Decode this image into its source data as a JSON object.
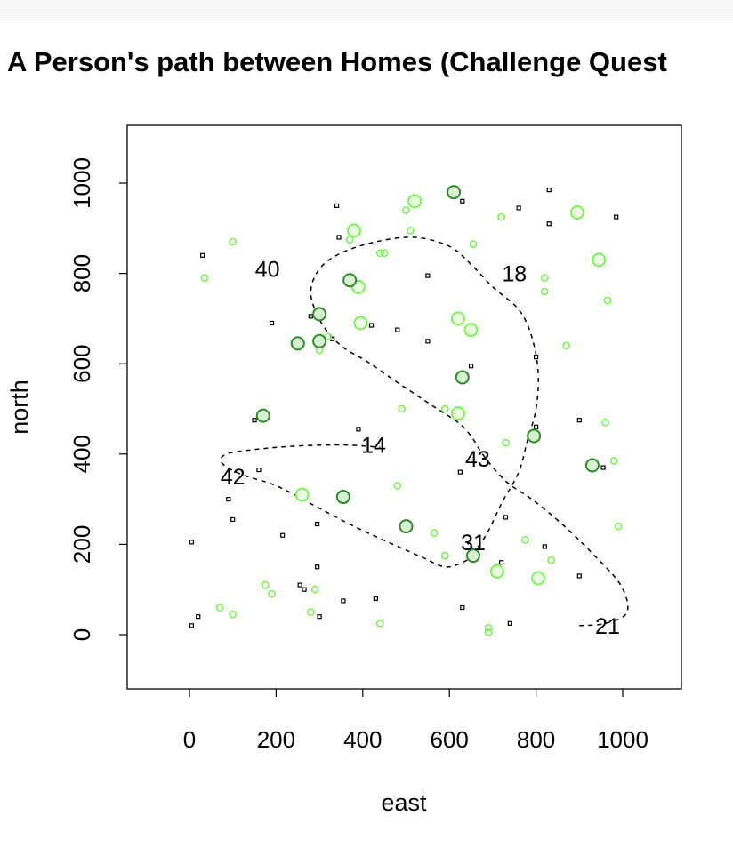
{
  "chart_data": {
    "type": "scatter",
    "title": "A Person's path between Homes (Challenge Quest",
    "xlabel": "east",
    "ylabel": "north",
    "xlim": [
      -140,
      1130
    ],
    "ylim": [
      -120,
      1120
    ],
    "xticks": [
      0,
      200,
      400,
      600,
      800,
      1000
    ],
    "xtick_labels": [
      "0",
      "200",
      "400",
      "600",
      "800",
      "1000"
    ],
    "yticks": [
      0,
      200,
      400,
      600,
      800,
      1000
    ],
    "ytick_labels": [
      "0",
      "200",
      "400",
      "600",
      "800",
      "1000"
    ],
    "grid": false,
    "colors": {
      "light_green": "#7ef05a",
      "dark_green": "#2f8a2a",
      "black": "#000000"
    },
    "series": [
      {
        "marker": "small-black-square",
        "color": "#000000",
        "points": [
          [
            5,
            20
          ],
          [
            20,
            40
          ],
          [
            5,
            205
          ],
          [
            30,
            840
          ],
          [
            90,
            300
          ],
          [
            100,
            255
          ],
          [
            150,
            475
          ],
          [
            160,
            365
          ],
          [
            190,
            690
          ],
          [
            215,
            220
          ],
          [
            255,
            110
          ],
          [
            265,
            100
          ],
          [
            280,
            705
          ],
          [
            295,
            245
          ],
          [
            295,
            150
          ],
          [
            300,
            40
          ],
          [
            330,
            655
          ],
          [
            345,
            880
          ],
          [
            340,
            950
          ],
          [
            355,
            75
          ],
          [
            390,
            455
          ],
          [
            420,
            685
          ],
          [
            430,
            80
          ],
          [
            480,
            675
          ],
          [
            550,
            795
          ],
          [
            550,
            650
          ],
          [
            625,
            360
          ],
          [
            630,
            960
          ],
          [
            630,
            60
          ],
          [
            650,
            595
          ],
          [
            720,
            160
          ],
          [
            730,
            260
          ],
          [
            740,
            25
          ],
          [
            760,
            945
          ],
          [
            800,
            460
          ],
          [
            800,
            615
          ],
          [
            820,
            195
          ],
          [
            830,
            985
          ],
          [
            830,
            910
          ],
          [
            900,
            130
          ],
          [
            900,
            475
          ],
          [
            955,
            370
          ],
          [
            985,
            925
          ]
        ]
      },
      {
        "marker": "small-green-circle",
        "color": "#7ef05a",
        "points": [
          [
            35,
            790
          ],
          [
            70,
            60
          ],
          [
            100,
            45
          ],
          [
            100,
            870
          ],
          [
            175,
            110
          ],
          [
            190,
            90
          ],
          [
            280,
            50
          ],
          [
            290,
            100
          ],
          [
            300,
            630
          ],
          [
            320,
            660
          ],
          [
            370,
            875
          ],
          [
            440,
            25
          ],
          [
            440,
            845
          ],
          [
            450,
            845
          ],
          [
            480,
            330
          ],
          [
            490,
            500
          ],
          [
            500,
            940
          ],
          [
            510,
            895
          ],
          [
            565,
            225
          ],
          [
            590,
            500
          ],
          [
            590,
            175
          ],
          [
            655,
            865
          ],
          [
            730,
            425
          ],
          [
            720,
            925
          ],
          [
            775,
            210
          ],
          [
            820,
            790
          ],
          [
            820,
            760
          ],
          [
            835,
            165
          ],
          [
            870,
            640
          ],
          [
            960,
            470
          ],
          [
            965,
            740
          ],
          [
            980,
            385
          ],
          [
            990,
            240
          ],
          [
            690,
            15
          ],
          [
            690,
            5
          ],
          [
            710,
            150
          ]
        ]
      },
      {
        "marker": "large-light-green-circle",
        "color": "#7ef05a",
        "points": [
          [
            260,
            310
          ],
          [
            380,
            895
          ],
          [
            390,
            770
          ],
          [
            395,
            690
          ],
          [
            520,
            960
          ],
          [
            620,
            700
          ],
          [
            620,
            490
          ],
          [
            650,
            675
          ],
          [
            710,
            140
          ],
          [
            805,
            125
          ],
          [
            895,
            935
          ],
          [
            945,
            830
          ]
        ]
      },
      {
        "marker": "large-dark-green-circle",
        "color": "#2f8a2a",
        "points": [
          [
            170,
            485
          ],
          [
            250,
            645
          ],
          [
            300,
            710
          ],
          [
            300,
            650
          ],
          [
            355,
            305
          ],
          [
            370,
            785
          ],
          [
            500,
            240
          ],
          [
            610,
            980
          ],
          [
            630,
            570
          ],
          [
            655,
            175
          ],
          [
            795,
            440
          ],
          [
            930,
            375
          ]
        ]
      }
    ],
    "path": {
      "style": "dashed",
      "points": [
        [
          900,
          20
        ],
        [
          960,
          25
        ],
        [
          1010,
          50
        ],
        [
          995,
          110
        ],
        [
          930,
          180
        ],
        [
          860,
          245
        ],
        [
          790,
          300
        ],
        [
          730,
          340
        ],
        [
          680,
          395
        ],
        [
          650,
          440
        ],
        [
          620,
          470
        ],
        [
          580,
          495
        ],
        [
          525,
          530
        ],
        [
          470,
          565
        ],
        [
          410,
          605
        ],
        [
          350,
          640
        ],
        [
          305,
          690
        ],
        [
          280,
          755
        ],
        [
          300,
          810
        ],
        [
          350,
          845
        ],
        [
          430,
          870
        ],
        [
          520,
          880
        ],
        [
          600,
          860
        ],
        [
          650,
          820
        ],
        [
          700,
          770
        ],
        [
          760,
          720
        ],
        [
          790,
          660
        ],
        [
          805,
          580
        ],
        [
          800,
          500
        ],
        [
          780,
          430
        ],
        [
          760,
          360
        ],
        [
          720,
          290
        ],
        [
          690,
          230
        ],
        [
          660,
          190
        ],
        [
          640,
          205
        ],
        [
          660,
          180
        ],
        [
          630,
          160
        ],
        [
          590,
          150
        ],
        [
          540,
          170
        ],
        [
          470,
          200
        ],
        [
          380,
          240
        ],
        [
          280,
          290
        ],
        [
          200,
          330
        ],
        [
          120,
          355
        ],
        [
          75,
          380
        ],
        [
          85,
          400
        ],
        [
          150,
          410
        ],
        [
          250,
          418
        ],
        [
          360,
          420
        ],
        [
          440,
          415
        ]
      ]
    },
    "annotations": [
      {
        "text": "40",
        "x": 180,
        "y": 810
      },
      {
        "text": "18",
        "x": 750,
        "y": 800
      },
      {
        "text": "14",
        "x": 425,
        "y": 420
      },
      {
        "text": "43",
        "x": 665,
        "y": 390
      },
      {
        "text": "42",
        "x": 100,
        "y": 350
      },
      {
        "text": "31",
        "x": 655,
        "y": 205
      },
      {
        "text": "21",
        "x": 965,
        "y": 20
      }
    ]
  }
}
